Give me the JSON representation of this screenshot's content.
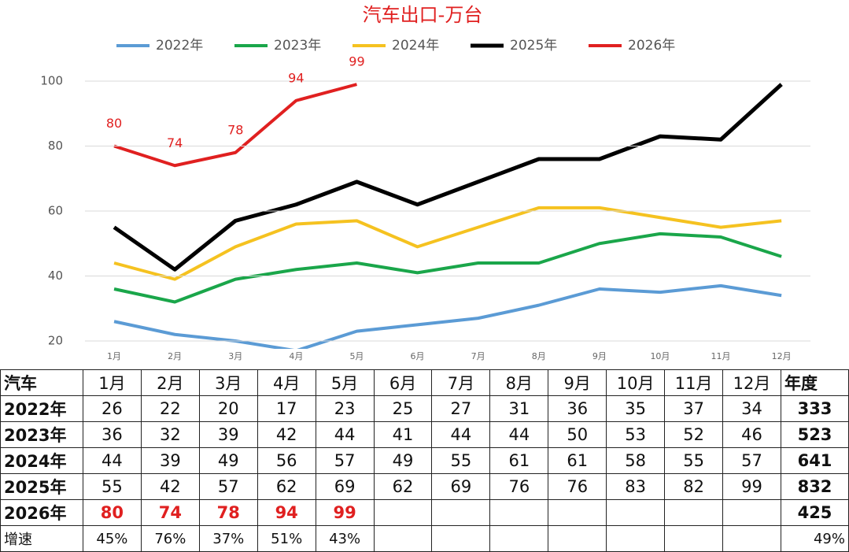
{
  "chart_data": {
    "type": "line",
    "title": "汽车出口-万台",
    "categories": [
      "1月",
      "2月",
      "3月",
      "4月",
      "5月",
      "6月",
      "7月",
      "8月",
      "9月",
      "10月",
      "11月",
      "12月"
    ],
    "series": [
      {
        "name": "2022年",
        "color": "#5b9bd5",
        "values": [
          26,
          22,
          20,
          17,
          23,
          25,
          27,
          31,
          36,
          35,
          37,
          34
        ]
      },
      {
        "name": "2023年",
        "color": "#1aa64a",
        "values": [
          36,
          32,
          39,
          42,
          44,
          41,
          44,
          44,
          50,
          53,
          52,
          46
        ]
      },
      {
        "name": "2024年",
        "color": "#f5c220",
        "values": [
          44,
          39,
          49,
          56,
          57,
          49,
          55,
          61,
          61,
          58,
          55,
          57
        ]
      },
      {
        "name": "2025年",
        "color": "#000000",
        "values": [
          55,
          42,
          57,
          62,
          69,
          62,
          69,
          76,
          76,
          83,
          82,
          99
        ]
      },
      {
        "name": "2026年",
        "color": "#e02020",
        "values": [
          80,
          74,
          78,
          94,
          99,
          null,
          null,
          null,
          null,
          null,
          null,
          null
        ],
        "data_labels": true
      }
    ],
    "ylim": [
      20,
      100
    ],
    "yticks": [
      20,
      40,
      60,
      80,
      100
    ],
    "grid": true,
    "legend": "top"
  },
  "table": {
    "corner": "汽车",
    "total_header": "年度",
    "totals": [
      333,
      523,
      641,
      832,
      425
    ],
    "growth_label": "增速",
    "growth": [
      "45%",
      "76%",
      "37%",
      "51%",
      "43%"
    ],
    "growth_total": "49%"
  }
}
